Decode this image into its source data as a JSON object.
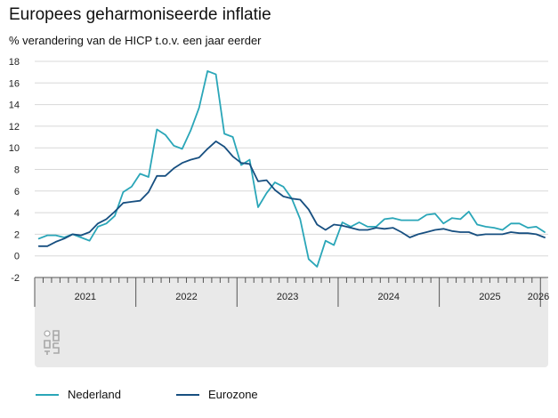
{
  "title": "Europees geharmoniseerde inflatie",
  "subtitle": "% verandering van de HICP t.o.v. een jaar eerder",
  "colors": {
    "nederland": "#2aa6b8",
    "eurozone": "#174f80",
    "grid": "#d8d8d8",
    "band": "#e9e9e9"
  },
  "logo": {
    "icon": "cbs-logo-icon"
  },
  "chart_data": {
    "type": "line",
    "title": "Europees geharmoniseerde inflatie",
    "ylabel": "% verandering van de HICP t.o.v. een jaar eerder",
    "ylim": [
      -2,
      18
    ],
    "yticks": [
      -2,
      0,
      2,
      4,
      6,
      8,
      10,
      12,
      14,
      16,
      18
    ],
    "xlim": [
      "2021-01",
      "2026-01"
    ],
    "year_labels": [
      "2021",
      "2022",
      "2023",
      "2024",
      "2025",
      "2026"
    ],
    "grid": true,
    "legend_position": "bottom",
    "x": [
      "2021-01",
      "2021-02",
      "2021-03",
      "2021-04",
      "2021-05",
      "2021-06",
      "2021-07",
      "2021-08",
      "2021-09",
      "2021-10",
      "2021-11",
      "2021-12",
      "2022-01",
      "2022-02",
      "2022-03",
      "2022-04",
      "2022-05",
      "2022-06",
      "2022-07",
      "2022-08",
      "2022-09",
      "2022-10",
      "2022-11",
      "2022-12",
      "2023-01",
      "2023-02",
      "2023-03",
      "2023-04",
      "2023-05",
      "2023-06",
      "2023-07",
      "2023-08",
      "2023-09",
      "2023-10",
      "2023-11",
      "2023-12",
      "2024-01",
      "2024-02",
      "2024-03",
      "2024-04",
      "2024-05",
      "2024-06",
      "2024-07",
      "2024-08",
      "2024-09",
      "2024-10",
      "2024-11",
      "2024-12",
      "2025-01",
      "2025-02",
      "2025-03",
      "2025-04",
      "2025-05",
      "2025-06",
      "2025-07",
      "2025-08",
      "2025-09",
      "2025-10",
      "2025-11",
      "2025-12",
      "2026-01"
    ],
    "series": [
      {
        "name": "Nederland",
        "color": "#2aa6b8",
        "values": [
          1.6,
          1.9,
          1.9,
          1.7,
          2.0,
          1.7,
          1.4,
          2.7,
          3.0,
          3.7,
          5.9,
          6.4,
          7.6,
          7.3,
          11.7,
          11.2,
          10.2,
          9.9,
          11.6,
          13.7,
          17.1,
          16.8,
          11.3,
          11.0,
          8.4,
          8.9,
          4.5,
          5.8,
          6.8,
          6.4,
          5.3,
          3.4,
          -0.3,
          -1.0,
          1.4,
          1.0,
          3.1,
          2.7,
          3.1,
          2.7,
          2.7,
          3.4,
          3.5,
          3.3,
          3.3,
          3.3,
          3.8,
          3.9,
          3.0,
          3.5,
          3.4,
          4.1,
          2.9,
          2.7,
          2.6,
          2.4,
          3.0,
          3.0,
          2.6,
          2.7,
          2.2
        ]
      },
      {
        "name": "Eurozone",
        "color": "#174f80",
        "values": [
          0.9,
          0.9,
          1.3,
          1.6,
          2.0,
          1.9,
          2.2,
          3.0,
          3.4,
          4.1,
          4.9,
          5.0,
          5.1,
          5.9,
          7.4,
          7.4,
          8.1,
          8.6,
          8.9,
          9.1,
          9.9,
          10.6,
          10.1,
          9.2,
          8.6,
          8.5,
          6.9,
          7.0,
          6.1,
          5.5,
          5.3,
          5.2,
          4.3,
          2.9,
          2.4,
          2.9,
          2.8,
          2.6,
          2.4,
          2.4,
          2.6,
          2.5,
          2.6,
          2.2,
          1.7,
          2.0,
          2.2,
          2.4,
          2.5,
          2.3,
          2.2,
          2.2,
          1.9,
          2.0,
          2.0,
          2.0,
          2.2,
          2.1,
          2.1,
          2.0,
          1.7
        ]
      }
    ]
  }
}
